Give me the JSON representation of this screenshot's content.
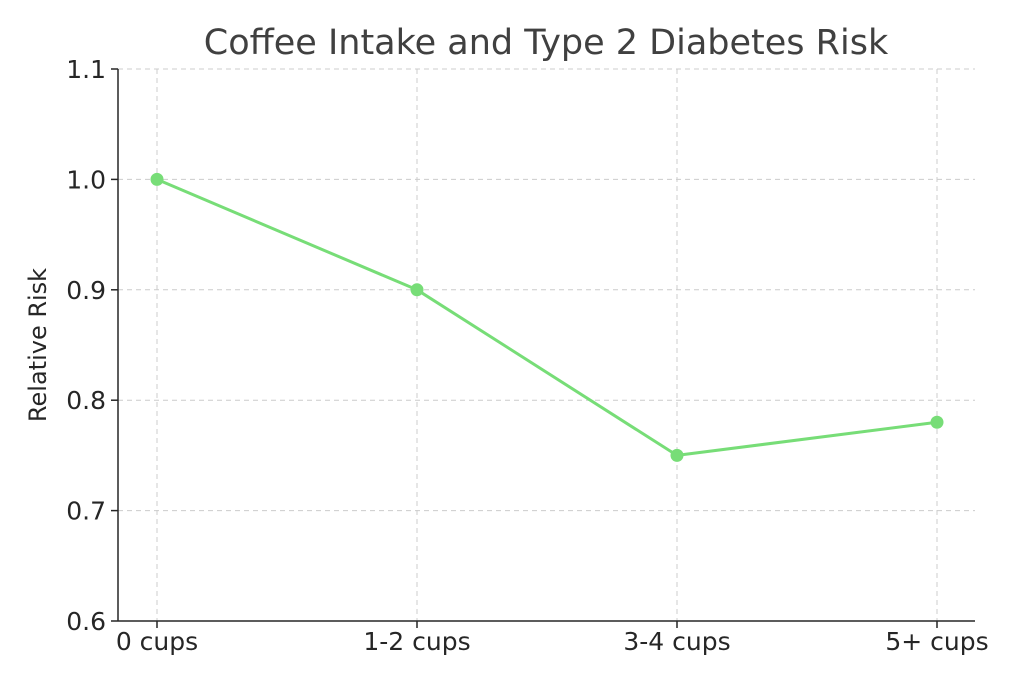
{
  "chart_data": {
    "type": "line",
    "title": "Coffee Intake and Type 2 Diabetes Risk",
    "xlabel": "",
    "ylabel": "Relative Risk",
    "categories": [
      "0 cups",
      "1-2 cups",
      "3-4 cups",
      "5+ cups"
    ],
    "series": [
      {
        "values": [
          1.0,
          0.9,
          0.75,
          0.78
        ],
        "color": "#77dd77"
      }
    ],
    "ylim": [
      0.6,
      1.1
    ],
    "yticks": [
      "0.6",
      "0.7",
      "0.8",
      "0.9",
      "1.0",
      "1.1"
    ],
    "grid": true,
    "legend": "none",
    "colors": {
      "line": "#77dd77",
      "grid": "#cccccc",
      "axis": "#262626",
      "title": "#404040"
    }
  }
}
